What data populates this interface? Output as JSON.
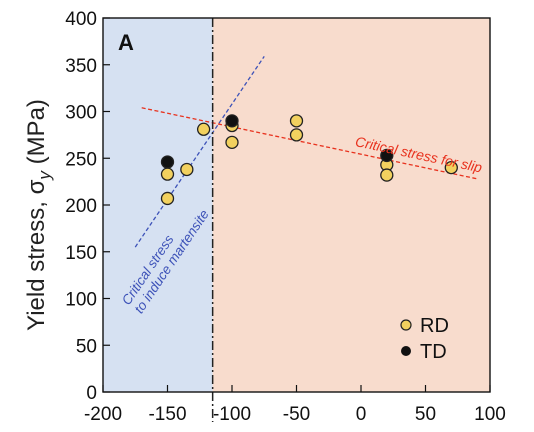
{
  "chart_data": {
    "type": "scatter",
    "panel_label": "A",
    "ylabel": "Yield stress, σ",
    "ylabel_sub": "y",
    "ylabel_unit": " (MPa)",
    "xlabel": "",
    "xlim": [
      -200,
      100
    ],
    "ylim": [
      0,
      400
    ],
    "xticks": [
      -200,
      -150,
      -100,
      -50,
      0,
      50,
      100
    ],
    "yticks": [
      0,
      50,
      100,
      150,
      200,
      250,
      300,
      350,
      400
    ],
    "grid": false,
    "legend_position": "bottom-right",
    "regions": [
      {
        "x_range": [
          -200,
          -115
        ],
        "color": "#d6e1f2"
      },
      {
        "x_range": [
          -115,
          100
        ],
        "color": "#f8dccd"
      }
    ],
    "divider_x": -115,
    "series": [
      {
        "name": "RD",
        "color": "#f2d15f",
        "points": [
          {
            "x": -150,
            "y": 233
          },
          {
            "x": -150,
            "y": 207
          },
          {
            "x": -135,
            "y": 238
          },
          {
            "x": -122,
            "y": 281
          },
          {
            "x": -100,
            "y": 285
          },
          {
            "x": -100,
            "y": 267
          },
          {
            "x": -50,
            "y": 290
          },
          {
            "x": -50,
            "y": 275
          },
          {
            "x": 20,
            "y": 243
          },
          {
            "x": 20,
            "y": 232
          },
          {
            "x": 70,
            "y": 240
          }
        ]
      },
      {
        "name": "TD",
        "color": "#111111",
        "points": [
          {
            "x": -150,
            "y": 246
          },
          {
            "x": -100,
            "y": 290
          },
          {
            "x": 20,
            "y": 253
          }
        ]
      }
    ],
    "trend_lines": [
      {
        "label": "Critical stress for slip",
        "color": "#e8321e",
        "from": [
          -170,
          304
        ],
        "to": [
          90,
          228
        ]
      },
      {
        "label_line1": "Critical stress",
        "label_line2": "to induce martensite",
        "color": "#3d52b8",
        "from": [
          -175,
          155
        ],
        "to": [
          -75,
          359
        ]
      }
    ]
  }
}
